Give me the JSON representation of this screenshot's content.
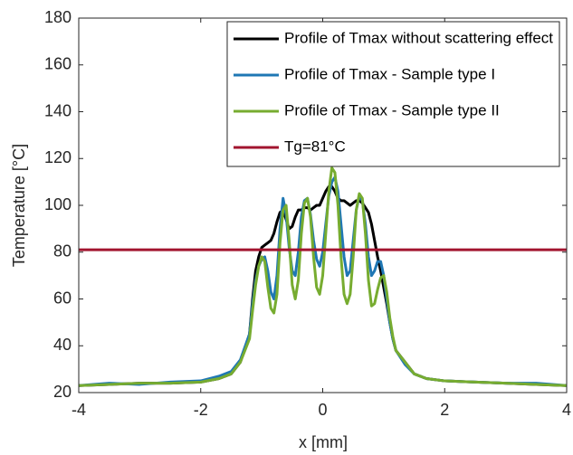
{
  "chart_data": {
    "type": "line",
    "x_label": "x [mm]",
    "y_label": "Temperature [°C]",
    "x": [
      -4,
      -3.5,
      -3,
      -2.5,
      -2,
      -1.7,
      -1.5,
      -1.35,
      -1.2,
      -1.15,
      -1.1,
      -1.05,
      -1.0,
      -0.95,
      -0.9,
      -0.85,
      -0.8,
      -0.75,
      -0.7,
      -0.65,
      -0.6,
      -0.55,
      -0.5,
      -0.45,
      -0.4,
      -0.35,
      -0.3,
      -0.25,
      -0.2,
      -0.15,
      -0.1,
      -0.05,
      0,
      0.05,
      0.1,
      0.15,
      0.2,
      0.25,
      0.3,
      0.35,
      0.4,
      0.45,
      0.5,
      0.55,
      0.6,
      0.65,
      0.7,
      0.75,
      0.8,
      0.85,
      0.9,
      0.95,
      1.0,
      1.05,
      1.1,
      1.15,
      1.2,
      1.35,
      1.5,
      1.7,
      2,
      2.5,
      3,
      3.5,
      4
    ],
    "series": [
      {
        "name": "Profile of Tmax without scattering effect",
        "color": "#000000",
        "values": [
          23,
          23.5,
          24,
          24,
          24.5,
          26,
          28,
          33,
          45,
          60,
          72,
          78,
          82,
          83,
          84,
          85,
          88,
          93,
          97,
          98,
          94,
          90,
          91,
          95,
          98,
          98,
          99,
          99,
          98,
          99,
          100,
          100,
          103,
          106,
          108,
          108,
          106,
          103,
          102,
          102,
          101,
          100,
          101,
          102,
          102,
          101,
          99,
          97,
          92,
          85,
          78,
          72,
          65,
          58,
          50,
          43,
          38,
          33,
          28,
          26,
          25,
          24.5,
          24,
          23.5,
          23
        ]
      },
      {
        "name": "Profile of Tmax - Sample type I",
        "color": "#1f77b4",
        "values": [
          23,
          24,
          23.5,
          24.5,
          25,
          27,
          29,
          34,
          45,
          58,
          68,
          74,
          77,
          78,
          72,
          63,
          60,
          70,
          90,
          103,
          96,
          82,
          72,
          70,
          80,
          95,
          102,
          103,
          96,
          85,
          77,
          74,
          80,
          92,
          104,
          110,
          112,
          106,
          92,
          78,
          70,
          72,
          85,
          98,
          104,
          102,
          92,
          78,
          70,
          72,
          76,
          76,
          70,
          60,
          50,
          43,
          38,
          32,
          28,
          26,
          25,
          24.5,
          24,
          24,
          23
        ]
      },
      {
        "name": "Profile of Tmax - Sample type II",
        "color": "#77ac30",
        "values": [
          23,
          23.5,
          24,
          24,
          24.5,
          26,
          28,
          33,
          43,
          55,
          66,
          74,
          78,
          76,
          65,
          56,
          54,
          62,
          84,
          98,
          100,
          85,
          66,
          60,
          68,
          88,
          101,
          103,
          95,
          78,
          65,
          62,
          70,
          88,
          106,
          116,
          114,
          100,
          78,
          62,
          58,
          62,
          78,
          98,
          105,
          103,
          88,
          68,
          57,
          58,
          64,
          69,
          70,
          63,
          52,
          44,
          38,
          33,
          28,
          26,
          25,
          24.5,
          24,
          23.5,
          23
        ]
      }
    ],
    "reference_line": {
      "name": "Tg=81°C",
      "value": 81,
      "color": "#a2142f"
    },
    "xlim": [
      -4,
      4
    ],
    "ylim": [
      20,
      180
    ],
    "xticks": [
      -4,
      -2,
      0,
      2,
      4
    ],
    "yticks": [
      20,
      40,
      60,
      80,
      100,
      120,
      140,
      160,
      180
    ],
    "legend": "upper right"
  }
}
